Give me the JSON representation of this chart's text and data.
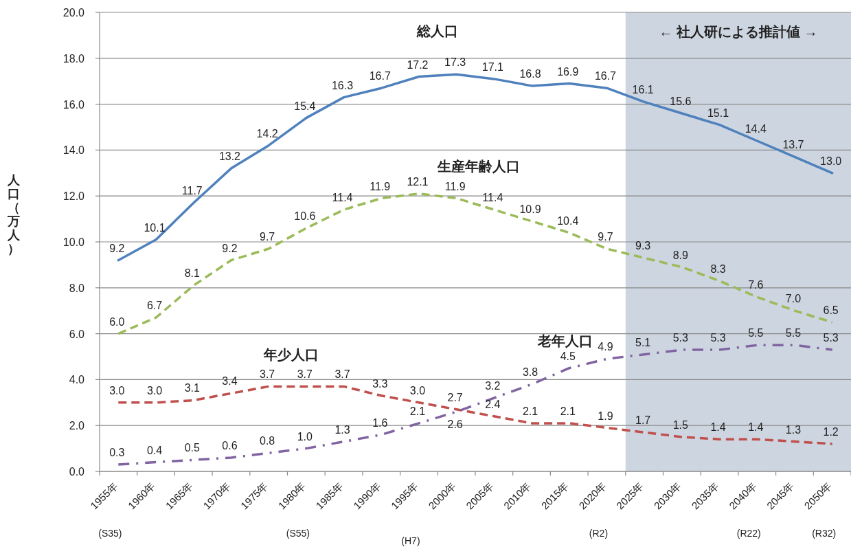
{
  "chart_data": {
    "type": "line",
    "ylabel": "人口（万人）",
    "categories": [
      "1955年",
      "1960年",
      "1965年",
      "1970年",
      "1975年",
      "1980年",
      "1985年",
      "1990年",
      "1995年",
      "2000年",
      "2005年",
      "2010年",
      "2015年",
      "2020年",
      "2025年",
      "2030年",
      "2035年",
      "2040年",
      "2045年",
      "2050年"
    ],
    "series": [
      {
        "name": "総人口",
        "color": "#4f81bd",
        "line_style": "solid",
        "values": [
          9.2,
          10.1,
          11.7,
          13.2,
          14.2,
          15.4,
          16.3,
          16.7,
          17.2,
          17.3,
          17.1,
          16.8,
          16.9,
          16.7,
          16.1,
          15.6,
          15.1,
          14.4,
          13.7,
          13.0
        ],
        "value_labels": [
          "9.2",
          "10.1",
          "11.7",
          "13.2",
          "14.2",
          "15.4",
          "16.3",
          "16.7",
          "17.2",
          "17.3",
          "17.1",
          "16.8",
          "16.9",
          "16.7",
          "16.1",
          "15.6",
          "15.1",
          "14.4",
          "13.7",
          "13.0"
        ]
      },
      {
        "name": "生産年齢人口",
        "color": "#9bbb59",
        "line_style": "dashed",
        "values": [
          6.0,
          6.7,
          8.1,
          9.2,
          9.7,
          10.6,
          11.4,
          11.9,
          12.1,
          11.9,
          11.4,
          10.9,
          10.4,
          9.7,
          9.3,
          8.9,
          8.3,
          7.6,
          7.0,
          6.5
        ],
        "value_labels": [
          "6.0",
          "6.7",
          "8.1",
          "9.2",
          "9.7",
          "10.6",
          "11.4",
          "11.9",
          "12.1",
          "11.9",
          "11.4",
          "10.9",
          "10.4",
          "9.7",
          "9.3",
          "8.9",
          "8.3",
          "7.6",
          "7.0",
          "6.5"
        ]
      },
      {
        "name": "年少人口",
        "color": "#c0504d",
        "line_style": "dashed",
        "values": [
          3.0,
          3.0,
          3.1,
          3.4,
          3.7,
          3.7,
          3.7,
          3.3,
          3.0,
          2.7,
          2.4,
          2.1,
          2.1,
          1.9,
          1.7,
          1.5,
          1.4,
          1.4,
          1.3,
          1.2
        ],
        "value_labels": [
          "3.0",
          "3.0",
          "3.1",
          "3.4",
          "3.7",
          "3.7",
          "3.7",
          "3.3",
          "3.0",
          "2.7",
          "2.4",
          "2.1",
          "2.1",
          "1.9",
          "1.7",
          "1.5",
          "1.4",
          "1.4",
          "1.3",
          "1.2"
        ]
      },
      {
        "name": "老年人口",
        "color": "#8064a2",
        "line_style": "dashdot",
        "values": [
          0.3,
          0.4,
          0.5,
          0.6,
          0.8,
          1.0,
          1.3,
          1.6,
          2.1,
          2.6,
          3.2,
          3.8,
          4.5,
          4.9,
          5.1,
          5.3,
          5.3,
          5.5,
          5.5,
          5.3
        ],
        "value_labels": [
          "0.3",
          "0.4",
          "0.5",
          "0.6",
          "0.8",
          "1.0",
          "1.3",
          "1.6",
          "2.1",
          "2.6",
          "3.2",
          "3.8",
          "4.5",
          "4.9",
          "5.1",
          "5.3",
          "5.3",
          "5.5",
          "5.5",
          "5.3"
        ]
      }
    ],
    "ylim": [
      0,
      20
    ],
    "yticks": [
      {
        "value": 0,
        "label": "0.0"
      },
      {
        "value": 2,
        "label": "2.0"
      },
      {
        "value": 4,
        "label": "4.0"
      },
      {
        "value": 6,
        "label": "6.0"
      },
      {
        "value": 8,
        "label": "8.0"
      },
      {
        "value": 10,
        "label": "10.0"
      },
      {
        "value": 12,
        "label": "12.0"
      },
      {
        "value": 14,
        "label": "14.0"
      },
      {
        "value": 16,
        "label": "16.0"
      },
      {
        "value": 18,
        "label": "18.0"
      },
      {
        "value": 20,
        "label": "20.0"
      }
    ],
    "grid": "y",
    "marker": "none",
    "bands": [
      {
        "axis": "x",
        "from": "2025年",
        "to": "2050年",
        "label": "← 社人研による推計値 →",
        "color": "#cdd5e0"
      }
    ],
    "annotations": [
      "(S35)",
      "(S55)",
      "(H7)",
      "(R2)",
      "(R22)",
      "(R32)"
    ]
  }
}
